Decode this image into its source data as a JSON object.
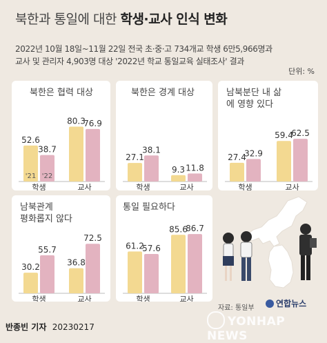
{
  "header": {
    "title_light": "북한과 통일에 대한 ",
    "title_bold": "학생·교사 인식 변화",
    "subtitle_line1": "2022년 10월 18일~11월 22일 전국 초·중·고 734개교 학생 6만5,966명과",
    "subtitle_line2": "교사 및 관리자 4,903명 대상 '2022년 학교 통일교육 실태조사' 결과",
    "unit": "단위: %"
  },
  "colors": {
    "y2021": "#f3d991",
    "y2022": "#e3b3c0",
    "axis": "#bbbbbb"
  },
  "chart_data": [
    {
      "type": "bar",
      "title": "북한은 협력 대상",
      "categories": [
        "학생",
        "교사"
      ],
      "series": [
        {
          "name": "'21",
          "values": [
            52.6,
            80.3
          ]
        },
        {
          "name": "'22",
          "values": [
            38.7,
            76.9
          ]
        }
      ]
    },
    {
      "type": "bar",
      "title": "북한은 경계 대상",
      "categories": [
        "학생",
        "교사"
      ],
      "series": [
        {
          "values": [
            27.1,
            9.3
          ]
        },
        {
          "values": [
            38.1,
            11.8
          ]
        }
      ]
    },
    {
      "type": "bar",
      "title": "남북분단 내 삶에 영향 있다",
      "categories": [
        "학생",
        "교사"
      ],
      "series": [
        {
          "values": [
            27.4,
            59.4
          ]
        },
        {
          "values": [
            32.9,
            62.5
          ]
        }
      ]
    },
    {
      "type": "bar",
      "title": "남북관계 평화롭지 않다",
      "categories": [
        "학생",
        "교사"
      ],
      "series": [
        {
          "values": [
            30.2,
            36.8
          ]
        },
        {
          "values": [
            55.7,
            72.5
          ]
        }
      ]
    },
    {
      "type": "bar",
      "title": "통일 필요하다",
      "categories": [
        "학생",
        "교사"
      ],
      "series": [
        {
          "values": [
            61.2,
            85.6
          ]
        },
        {
          "values": [
            57.6,
            86.7
          ]
        }
      ]
    }
  ],
  "footer": {
    "source": "자료: 통일부",
    "logo": "연합뉴스",
    "watermark": "YONHAP NEWS",
    "credit_name": "반종빈 기자",
    "credit_date": "20230217"
  }
}
